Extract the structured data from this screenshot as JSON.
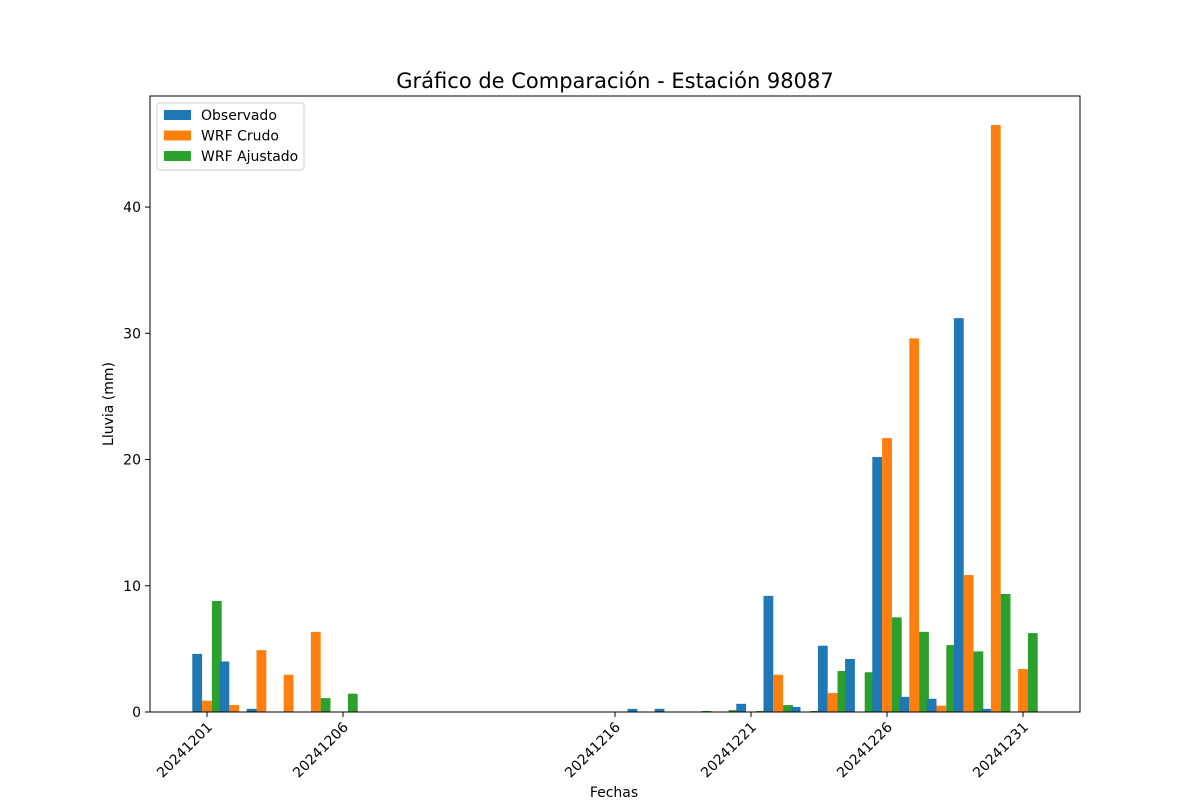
{
  "chart_data": {
    "type": "bar",
    "title": "Gráfico de Comparación - Estación 98087",
    "xlabel": "Fechas",
    "ylabel": "Lluvia (mm)",
    "ylim": [
      0,
      48.8
    ],
    "yticks": [
      0,
      10,
      20,
      30,
      40
    ],
    "legend_position": "top-left",
    "dates": [
      "20241201",
      "20241202",
      "20241203",
      "20241204",
      "20241205",
      "20241206",
      "20241207",
      "20241212",
      "20241216",
      "20241217",
      "20241218",
      "20241219",
      "20241220",
      "20241221",
      "20241222",
      "20241223",
      "20241224",
      "20241225",
      "20241226",
      "20241227",
      "20241228",
      "20241229",
      "20241230",
      "20241231"
    ],
    "xtick_labels": [
      "20241201",
      "20241206",
      "20241216",
      "20241221",
      "20241226",
      "20241231"
    ],
    "series": [
      {
        "name": "Observado",
        "color": "#1f77b4",
        "values": [
          4.6,
          4.0,
          0.25,
          0.0,
          0.0,
          0.0,
          0.0,
          0.0,
          0.0,
          0.25,
          0.25,
          0.0,
          0.0,
          0.65,
          9.2,
          0.4,
          5.25,
          4.2,
          20.2,
          1.2,
          1.05,
          31.2,
          0.25,
          0.0
        ]
      },
      {
        "name": "WRF Crudo",
        "color": "#ff7f0e",
        "values": [
          0.9,
          0.55,
          4.9,
          2.95,
          6.35,
          0.0,
          0.0,
          0.0,
          0.0,
          0.0,
          0.0,
          0.0,
          0.0,
          0.0,
          2.95,
          0.0,
          1.5,
          0.0,
          21.7,
          29.6,
          0.5,
          10.85,
          46.5,
          3.4
        ]
      },
      {
        "name": "WRF Ajustado",
        "color": "#2ca02c",
        "values": [
          8.8,
          0.0,
          0.0,
          0.0,
          1.1,
          1.45,
          0.0,
          0.0,
          0.0,
          0.0,
          0.0,
          0.08,
          0.15,
          0.08,
          0.55,
          0.08,
          3.25,
          3.15,
          7.5,
          6.35,
          5.3,
          4.8,
          9.35,
          6.25
        ]
      }
    ]
  }
}
